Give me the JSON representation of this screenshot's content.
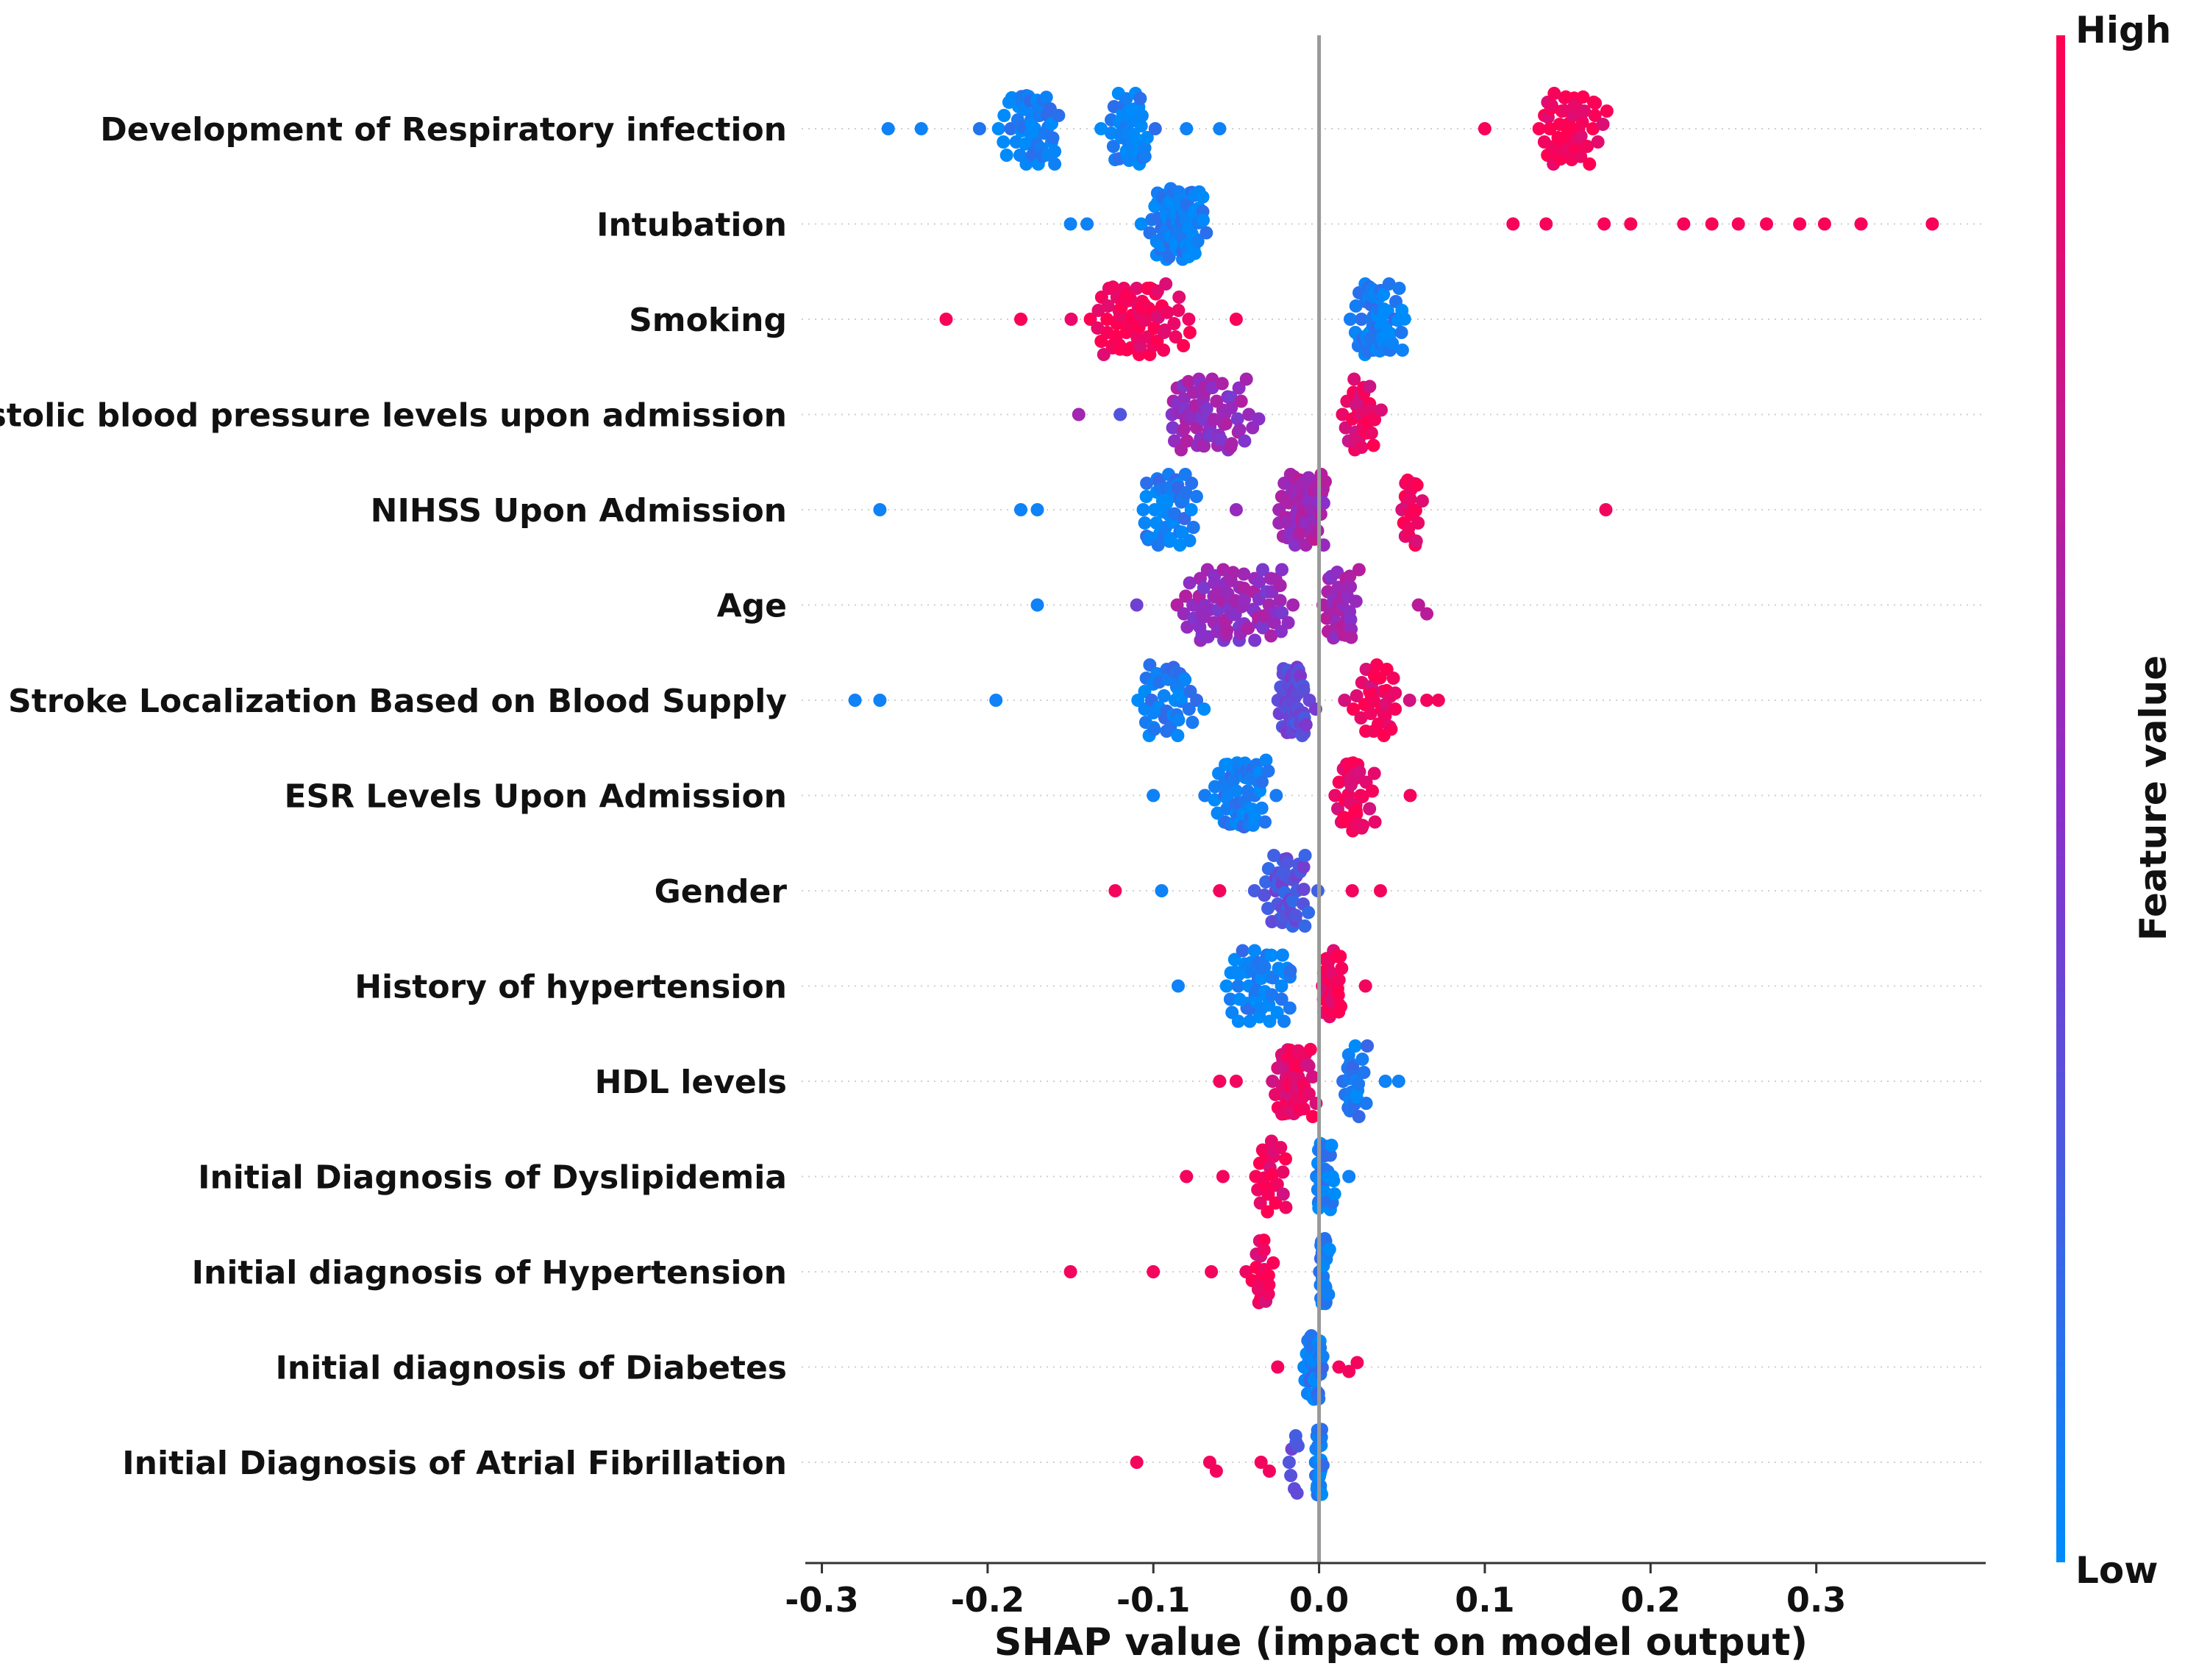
{
  "chart_data": {
    "type": "scatter",
    "subtype": "shap-beeswarm",
    "title": "",
    "xlabel": "SHAP value (impact on model output)",
    "ylabel": "",
    "xlim": [
      -0.31,
      0.4
    ],
    "x_ticks": [
      -0.3,
      -0.2,
      -0.1,
      0.0,
      0.1,
      0.2,
      0.3
    ],
    "x_tick_labels": [
      "-0.3",
      "-0.2",
      "-0.1",
      "0.0",
      "0.1",
      "0.2",
      "0.3"
    ],
    "zero_line": true,
    "grid": false,
    "colorbar": {
      "title": "Feature value",
      "high_label": "High",
      "low_label": "Low",
      "high_color": "#ff0052",
      "low_color": "#008bfb"
    },
    "features": [
      {
        "name": "Development of Respiratory infection",
        "clusters": [
          {
            "center": -0.175,
            "spread": 0.045,
            "count": 55,
            "color": 0.05
          },
          {
            "center": -0.115,
            "spread": 0.028,
            "count": 45,
            "color": 0.05
          },
          {
            "center": 0.15,
            "spread": 0.04,
            "count": 55,
            "color": 0.97
          }
        ],
        "points": [
          {
            "x": -0.26,
            "c": 0.05
          },
          {
            "x": -0.24,
            "c": 0.05
          },
          {
            "x": -0.08,
            "c": 0.05
          },
          {
            "x": -0.06,
            "c": 0.05
          },
          {
            "x": 0.1,
            "c": 0.97
          }
        ]
      },
      {
        "name": "Intubation",
        "clusters": [
          {
            "center": -0.085,
            "spread": 0.03,
            "count": 95,
            "color": 0.05
          }
        ],
        "points": [
          {
            "x": -0.15,
            "c": 0.05
          },
          {
            "x": -0.14,
            "c": 0.05
          },
          {
            "x": 0.117,
            "c": 0.97
          },
          {
            "x": 0.137,
            "c": 0.97
          },
          {
            "x": 0.172,
            "c": 0.97
          },
          {
            "x": 0.188,
            "c": 0.97
          },
          {
            "x": 0.22,
            "c": 0.97
          },
          {
            "x": 0.237,
            "c": 0.97
          },
          {
            "x": 0.253,
            "c": 0.97
          },
          {
            "x": 0.27,
            "c": 0.97
          },
          {
            "x": 0.29,
            "c": 0.97
          },
          {
            "x": 0.305,
            "c": 0.97
          },
          {
            "x": 0.327,
            "c": 0.97
          },
          {
            "x": 0.37,
            "c": 0.97
          }
        ]
      },
      {
        "name": "Smoking",
        "clusters": [
          {
            "center": -0.11,
            "spread": 0.06,
            "count": 80,
            "color": 0.97
          },
          {
            "center": 0.035,
            "spread": 0.028,
            "count": 75,
            "color": 0.05
          }
        ],
        "points": [
          {
            "x": -0.225,
            "c": 0.97
          },
          {
            "x": -0.18,
            "c": 0.97
          },
          {
            "x": -0.05,
            "c": 0.97
          }
        ]
      },
      {
        "name": "Systolic blood pressure levels upon admission",
        "clusters": [
          {
            "center": -0.07,
            "spread": 0.055,
            "count": 70,
            "color": 0.55
          },
          {
            "center": 0.025,
            "spread": 0.022,
            "count": 40,
            "color": 0.88
          }
        ],
        "points": [
          {
            "x": -0.145,
            "c": 0.6
          },
          {
            "x": -0.12,
            "c": 0.3
          }
        ]
      },
      {
        "name": "NIHSS Upon Admission",
        "clusters": [
          {
            "center": -0.09,
            "spread": 0.04,
            "count": 50,
            "color": 0.08
          },
          {
            "center": -0.01,
            "spread": 0.025,
            "count": 85,
            "color": 0.6
          },
          {
            "center": 0.055,
            "spread": 0.015,
            "count": 25,
            "color": 0.95
          }
        ],
        "points": [
          {
            "x": -0.265,
            "c": 0.05
          },
          {
            "x": -0.18,
            "c": 0.05
          },
          {
            "x": -0.17,
            "c": 0.05
          },
          {
            "x": -0.05,
            "c": 0.55
          },
          {
            "x": 0.173,
            "c": 0.95
          }
        ]
      },
      {
        "name": "Age",
        "clusters": [
          {
            "center": -0.05,
            "spread": 0.06,
            "count": 90,
            "color": 0.55
          },
          {
            "center": 0.015,
            "spread": 0.025,
            "count": 40,
            "color": 0.6
          }
        ],
        "points": [
          {
            "x": -0.17,
            "c": 0.05
          },
          {
            "x": -0.11,
            "c": 0.4
          },
          {
            "x": 0.06,
            "c": 0.7
          },
          {
            "x": 0.065,
            "c": 0.7
          }
        ]
      },
      {
        "name": "Stroke Localization Based on Blood Supply",
        "clusters": [
          {
            "center": -0.09,
            "spread": 0.05,
            "count": 45,
            "color": 0.08
          },
          {
            "center": -0.015,
            "spread": 0.02,
            "count": 60,
            "color": 0.35
          },
          {
            "center": 0.035,
            "spread": 0.03,
            "count": 35,
            "color": 0.92
          }
        ],
        "points": [
          {
            "x": -0.28,
            "c": 0.05
          },
          {
            "x": -0.265,
            "c": 0.05
          },
          {
            "x": -0.195,
            "c": 0.05
          },
          {
            "x": 0.065,
            "c": 0.95
          },
          {
            "x": 0.072,
            "c": 0.95
          }
        ]
      },
      {
        "name": "ESR Levels Upon Admission",
        "clusters": [
          {
            "center": -0.045,
            "spread": 0.04,
            "count": 70,
            "color": 0.08
          },
          {
            "center": 0.02,
            "spread": 0.02,
            "count": 45,
            "color": 0.93
          }
        ],
        "points": [
          {
            "x": -0.1,
            "c": 0.05
          },
          {
            "x": 0.055,
            "c": 0.95
          }
        ]
      },
      {
        "name": "Gender",
        "clusters": [
          {
            "center": -0.02,
            "spread": 0.03,
            "count": 60,
            "color": 0.3
          }
        ],
        "points": [
          {
            "x": -0.123,
            "c": 0.95
          },
          {
            "x": -0.095,
            "c": 0.05
          },
          {
            "x": -0.06,
            "c": 0.95
          },
          {
            "x": 0.02,
            "c": 0.95
          },
          {
            "x": 0.037,
            "c": 0.95
          }
        ]
      },
      {
        "name": "History of hypertension",
        "clusters": [
          {
            "center": -0.035,
            "spread": 0.035,
            "count": 55,
            "color": 0.06
          },
          {
            "center": 0.008,
            "spread": 0.012,
            "count": 45,
            "color": 0.95
          }
        ],
        "points": [
          {
            "x": -0.085,
            "c": 0.05
          },
          {
            "x": 0.028,
            "c": 0.95
          }
        ]
      },
      {
        "name": "HDL levels",
        "clusters": [
          {
            "center": -0.015,
            "spread": 0.022,
            "count": 80,
            "color": 0.9
          },
          {
            "center": 0.02,
            "spread": 0.02,
            "count": 25,
            "color": 0.08
          }
        ],
        "points": [
          {
            "x": -0.06,
            "c": 0.95
          },
          {
            "x": -0.05,
            "c": 0.95
          },
          {
            "x": 0.04,
            "c": 0.05
          },
          {
            "x": 0.048,
            "c": 0.05
          }
        ]
      },
      {
        "name": "Initial Diagnosis of Dyslipidemia",
        "clusters": [
          {
            "center": -0.03,
            "spread": 0.02,
            "count": 25,
            "color": 0.93
          },
          {
            "center": 0.003,
            "spread": 0.01,
            "count": 45,
            "color": 0.06
          }
        ],
        "points": [
          {
            "x": -0.08,
            "c": 0.95
          },
          {
            "x": -0.058,
            "c": 0.95
          },
          {
            "x": 0.018,
            "c": 0.05
          }
        ]
      },
      {
        "name": "Initial diagnosis of Hypertension",
        "clusters": [
          {
            "center": -0.035,
            "spread": 0.015,
            "count": 22,
            "color": 0.93
          },
          {
            "center": 0.003,
            "spread": 0.006,
            "count": 40,
            "color": 0.06
          }
        ],
        "points": [
          {
            "x": -0.15,
            "c": 0.95
          },
          {
            "x": -0.1,
            "c": 0.95
          },
          {
            "x": -0.065,
            "c": 0.95
          }
        ]
      },
      {
        "name": "Initial diagnosis of Diabetes",
        "clusters": [
          {
            "center": -0.003,
            "spread": 0.012,
            "count": 45,
            "color": 0.08
          }
        ],
        "points": [
          {
            "x": -0.025,
            "c": 0.95
          },
          {
            "x": 0.012,
            "c": 0.95
          },
          {
            "x": 0.018,
            "c": 0.95
          },
          {
            "x": 0.023,
            "c": 0.95
          }
        ]
      },
      {
        "name": "Initial Diagnosis of Atrial Fibrillation",
        "clusters": [
          {
            "center": 0.0,
            "spread": 0.004,
            "count": 30,
            "color": 0.06
          },
          {
            "center": -0.015,
            "spread": 0.006,
            "count": 8,
            "color": 0.3
          }
        ],
        "points": [
          {
            "x": -0.11,
            "c": 0.95
          },
          {
            "x": -0.066,
            "c": 0.95
          },
          {
            "x": -0.062,
            "c": 0.95
          },
          {
            "x": -0.035,
            "c": 0.95
          },
          {
            "x": -0.03,
            "c": 0.95
          }
        ]
      }
    ]
  }
}
